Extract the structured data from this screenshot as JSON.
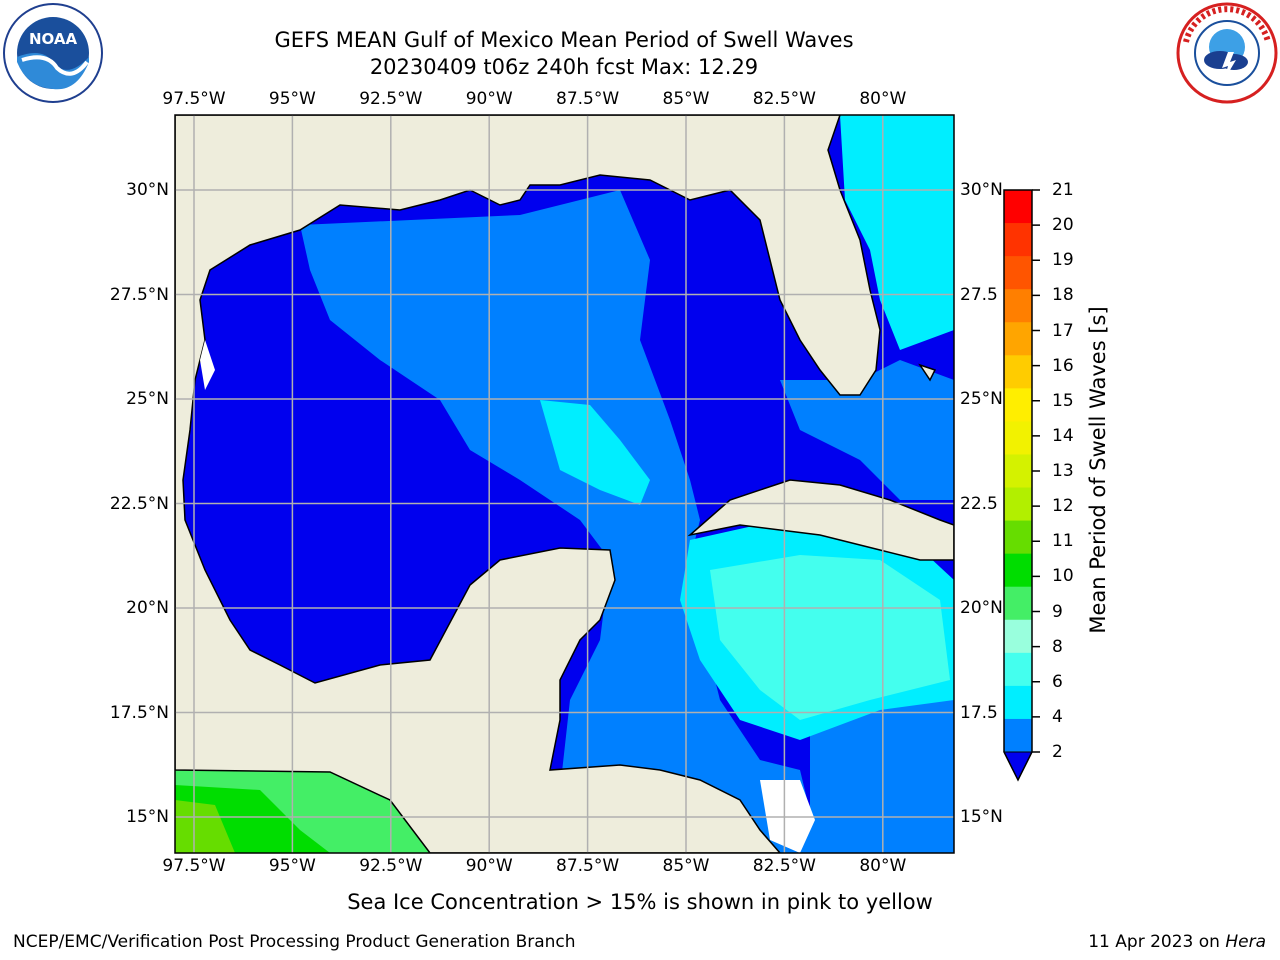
{
  "title": {
    "line1": "GEFS MEAN Gulf of Mexico Mean Period of Swell Waves",
    "line2": "20230409 t06z 240h fcst   Max: 12.29"
  },
  "logos": {
    "left": "noaa-logo",
    "right": "national-weather-service-logo"
  },
  "map": {
    "lon_labels": [
      "97.5°W",
      "95°W",
      "92.5°W",
      "90°W",
      "87.5°W",
      "85°W",
      "82.5°W",
      "80°W"
    ],
    "lat_labels_left": [
      "30°N",
      "27.5°N",
      "25°N",
      "22.5°N",
      "20°N",
      "17.5°N",
      "15°N"
    ],
    "lat_labels_right": [
      "30°N",
      "27.5",
      "25°N",
      "22.5",
      "20°N",
      "17.5",
      "15°N"
    ],
    "land_color": "#eeeddc",
    "gridline_color": "#b0b0b0"
  },
  "colorbar": {
    "label": "Mean Period of Swell Waves [s]",
    "ticks": [
      "21",
      "20",
      "19",
      "18",
      "17",
      "16",
      "15",
      "14",
      "13",
      "12",
      "11",
      "10",
      "9",
      "8",
      "6",
      "4",
      "2"
    ],
    "colors": [
      "#ff0000",
      "#ff3300",
      "#ff5500",
      "#ff7f00",
      "#ffa500",
      "#ffcc00",
      "#ffee00",
      "#f2f200",
      "#d4f200",
      "#b2ef00",
      "#66dd00",
      "#00dd00",
      "#44ee66",
      "#99ffdd",
      "#44ffee",
      "#00eeff",
      "#0080ff"
    ],
    "under_color": "#0000ee"
  },
  "ice_note": "Sea Ice Concentration > 15% is shown in pink to yellow",
  "footer": {
    "left": "NCEP/EMC/Verification Post Processing Product Generation Branch",
    "right_date": "11 Apr 2023 on ",
    "right_host": "Hera"
  }
}
